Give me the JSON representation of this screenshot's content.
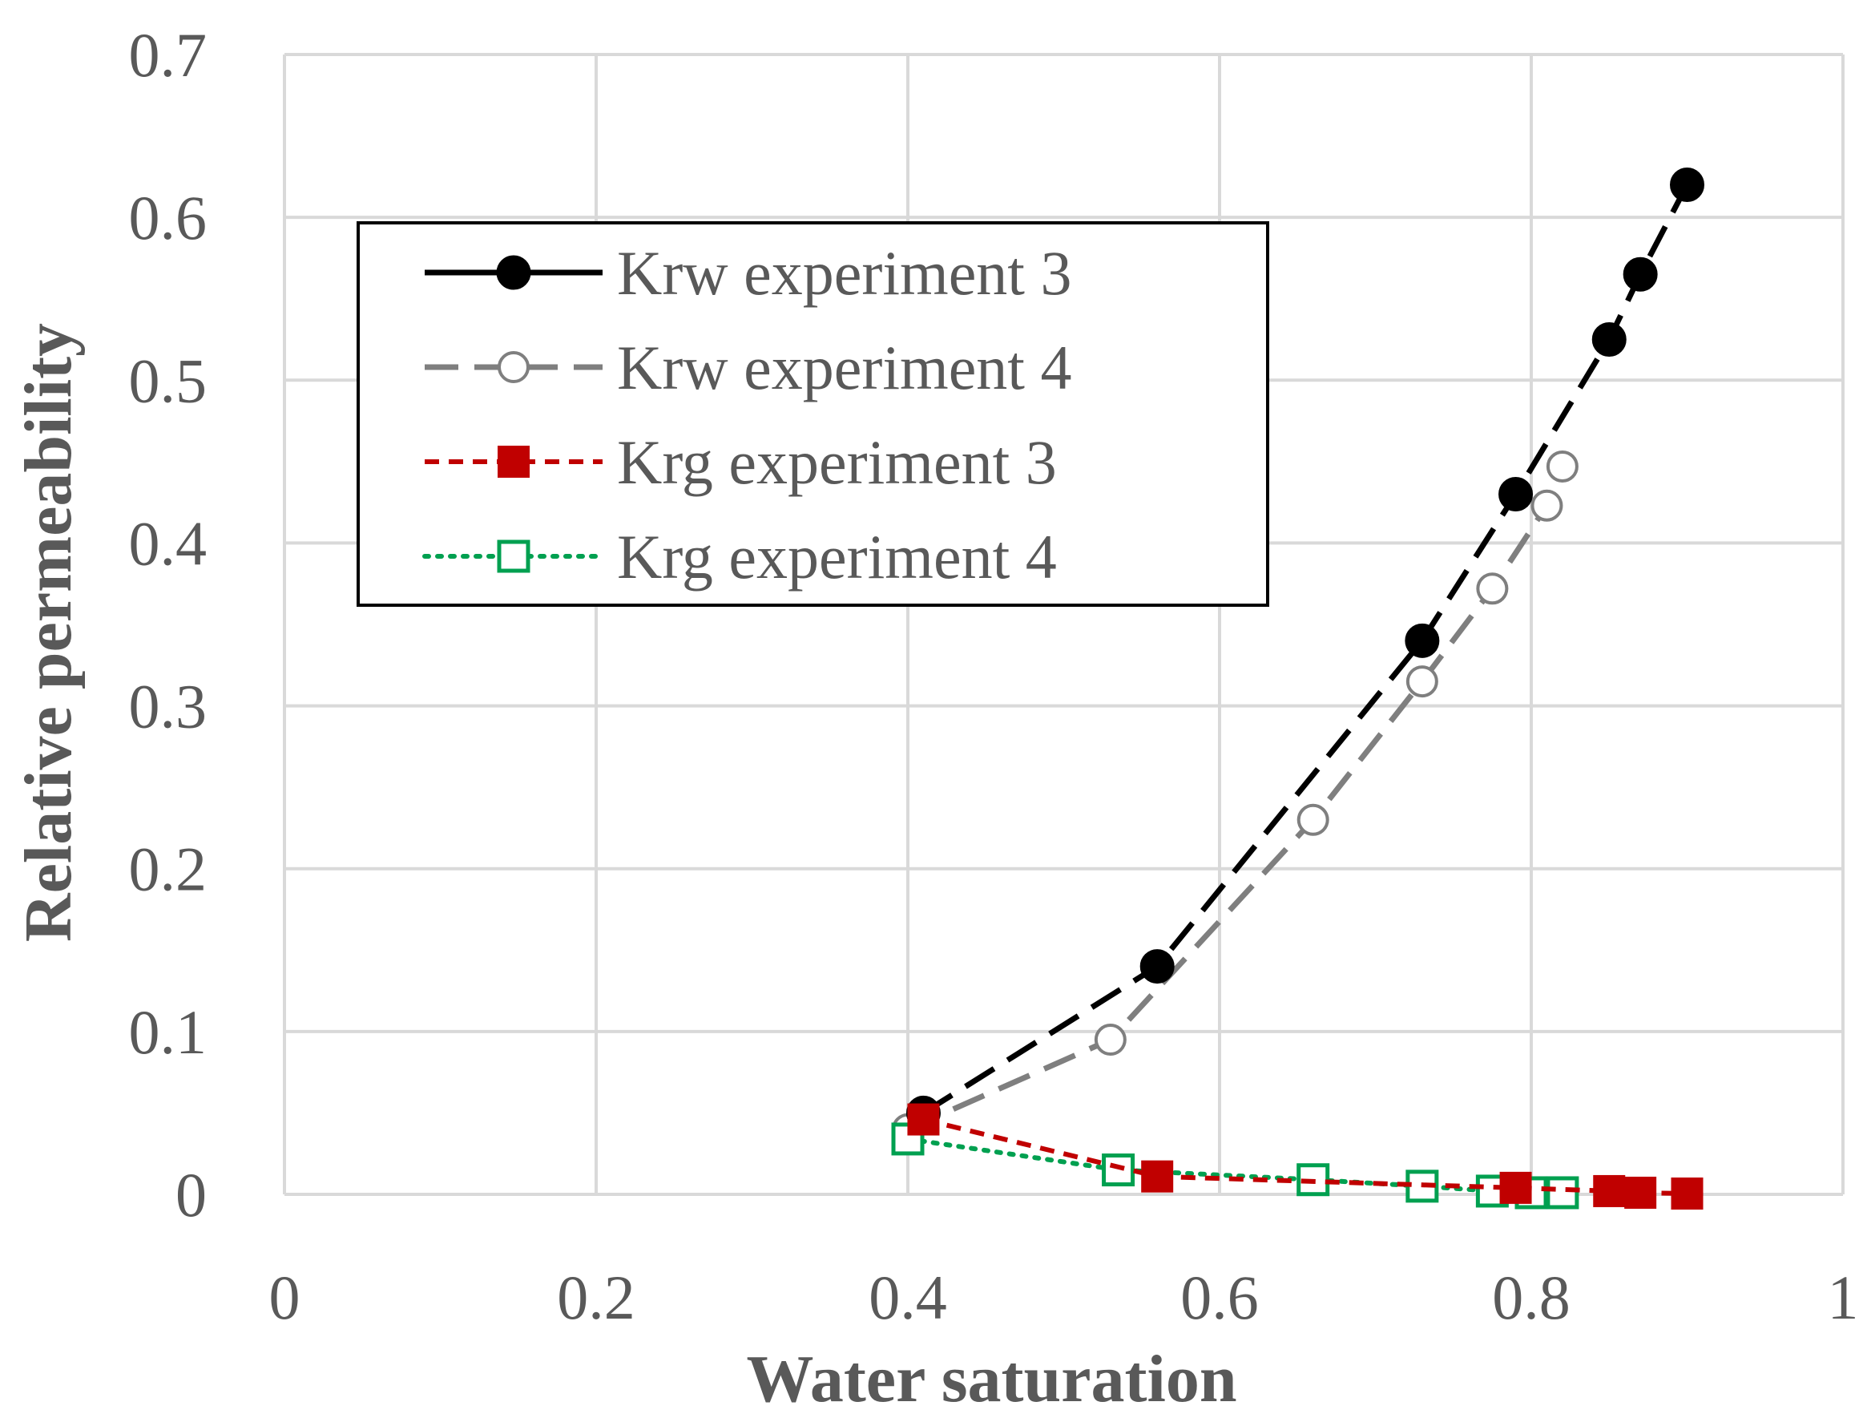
{
  "chart_data": {
    "type": "scatter",
    "title": "",
    "xlabel": "Water saturation",
    "ylabel": "Relative permeability",
    "xlim": [
      0,
      1
    ],
    "ylim": [
      0,
      0.7
    ],
    "grid": true,
    "legend_position": "top-left",
    "xticks": [
      {
        "value": 0,
        "label": "0"
      },
      {
        "value": 0.2,
        "label": "0.2"
      },
      {
        "value": 0.4,
        "label": "0.4"
      },
      {
        "value": 0.6,
        "label": "0.6"
      },
      {
        "value": 0.8,
        "label": "0.8"
      },
      {
        "value": 1,
        "label": "1"
      }
    ],
    "yticks": [
      {
        "value": 0,
        "label": "0"
      },
      {
        "value": 0.1,
        "label": "0.1"
      },
      {
        "value": 0.2,
        "label": "0.2"
      },
      {
        "value": 0.3,
        "label": "0.3"
      },
      {
        "value": 0.4,
        "label": "0.4"
      },
      {
        "value": 0.5,
        "label": "0.5"
      },
      {
        "value": 0.6,
        "label": "0.6"
      },
      {
        "value": 0.7,
        "label": "0.7"
      }
    ],
    "series": [
      {
        "name": "Krw experiment 3",
        "color": "#000000",
        "marker": "circle-filled",
        "line": "long-dash",
        "x": [
          0.41,
          0.56,
          0.73,
          0.79,
          0.85,
          0.87,
          0.9
        ],
        "y": [
          0.05,
          0.14,
          0.34,
          0.43,
          0.525,
          0.565,
          0.62
        ]
      },
      {
        "name": "Krw experiment 4",
        "color": "#7f7f7f",
        "marker": "circle-open",
        "line": "long-dash",
        "x": [
          0.4,
          0.53,
          0.66,
          0.73,
          0.775,
          0.81,
          0.82
        ],
        "y": [
          0.04,
          0.095,
          0.23,
          0.315,
          0.372,
          0.423,
          0.447
        ]
      },
      {
        "name": "Krg experiment 3",
        "color": "#c00000",
        "marker": "square-filled",
        "line": "short-dash",
        "x": [
          0.41,
          0.56,
          0.79,
          0.85,
          0.87,
          0.9
        ],
        "y": [
          0.046,
          0.011,
          0.004,
          0.002,
          0.001,
          0.0005
        ]
      },
      {
        "name": "Krg experiment 4",
        "color": "#00a050",
        "marker": "square-open",
        "line": "dotted",
        "x": [
          0.4,
          0.535,
          0.66,
          0.73,
          0.775,
          0.8,
          0.82
        ],
        "y": [
          0.034,
          0.015,
          0.009,
          0.005,
          0.002,
          0.001,
          0.001
        ]
      }
    ]
  }
}
